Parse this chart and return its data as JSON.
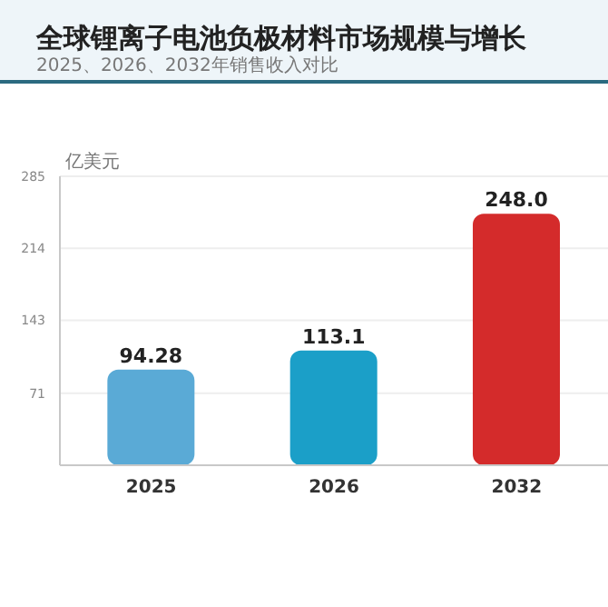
{
  "chart_data": {
    "type": "bar",
    "title": "全球锂离子电池负极材料市场规模与增长",
    "subtitle": "2025、2026、2032年销售收入对比",
    "ylabel": "亿美元",
    "categories": [
      "2025",
      "2026",
      "2032"
    ],
    "values": [
      94.28,
      113.1,
      248.0
    ],
    "colors": [
      "#5aaad6",
      "#1b9fc8",
      "#d42b2b"
    ],
    "value_labels": [
      "94.28",
      "113.1",
      "248.0"
    ],
    "ylim": [
      0,
      285
    ],
    "yticks": [
      {
        "value": 0,
        "label": null
      },
      71,
      143,
      214,
      285
    ],
    "grid": "y"
  }
}
